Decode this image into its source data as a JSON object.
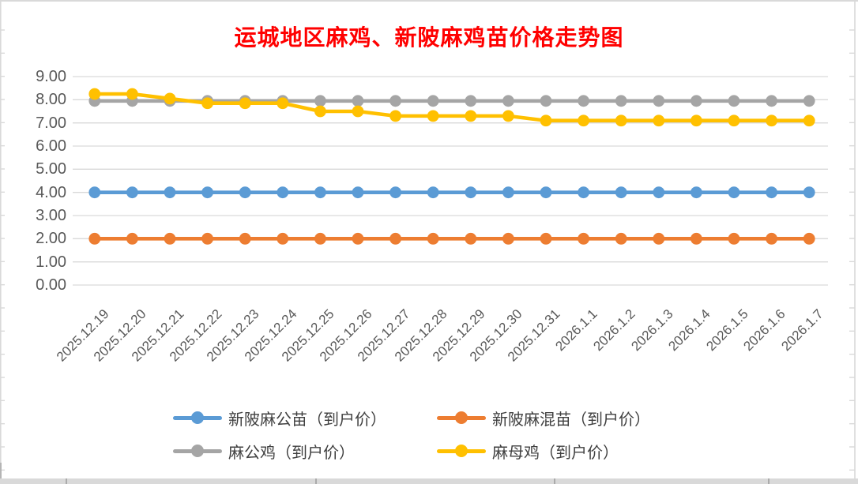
{
  "chart_data": {
    "type": "line",
    "title": "运城地区麻鸡、新陂麻鸡苗价格走势图",
    "title_color": "#FF0000",
    "categories": [
      "2025.12.19",
      "2025.12.20",
      "2025.12.21",
      "2025.12.22",
      "2025.12.23",
      "2025.12.24",
      "2025.12.25",
      "2025.12.26",
      "2025.12.27",
      "2025.12.28",
      "2025.12.29",
      "2025.12.30",
      "2025.12.31",
      "2026.1.1",
      "2026.1.2",
      "2026.1.3",
      "2026.1.4",
      "2026.1.5",
      "2026.1.6",
      "2026.1.7"
    ],
    "series": [
      {
        "name": "新陂麻公苗（到户价）",
        "color": "#5B9BD5",
        "values": [
          4.0,
          4.0,
          4.0,
          4.0,
          4.0,
          4.0,
          4.0,
          4.0,
          4.0,
          4.0,
          4.0,
          4.0,
          4.0,
          4.0,
          4.0,
          4.0,
          4.0,
          4.0,
          4.0,
          4.0
        ]
      },
      {
        "name": "新陂麻混苗（到户价）",
        "color": "#ED7D31",
        "values": [
          2.0,
          2.0,
          2.0,
          2.0,
          2.0,
          2.0,
          2.0,
          2.0,
          2.0,
          2.0,
          2.0,
          2.0,
          2.0,
          2.0,
          2.0,
          2.0,
          2.0,
          2.0,
          2.0,
          2.0
        ]
      },
      {
        "name": "麻公鸡（到户价）",
        "color": "#A5A5A5",
        "values": [
          7.95,
          7.95,
          7.95,
          7.95,
          7.95,
          7.95,
          7.95,
          7.95,
          7.95,
          7.95,
          7.95,
          7.95,
          7.95,
          7.95,
          7.95,
          7.95,
          7.95,
          7.95,
          7.95,
          7.95
        ]
      },
      {
        "name": "麻母鸡（到户价）",
        "color": "#FFC000",
        "values": [
          8.25,
          8.25,
          8.05,
          7.85,
          7.85,
          7.85,
          7.5,
          7.5,
          7.3,
          7.3,
          7.3,
          7.3,
          7.1,
          7.1,
          7.1,
          7.1,
          7.1,
          7.1,
          7.1,
          7.1
        ]
      }
    ],
    "ylim": [
      0,
      9
    ],
    "ytick_step": 1,
    "ytick_labels": [
      "0.00",
      "1.00",
      "2.00",
      "3.00",
      "4.00",
      "5.00",
      "6.00",
      "7.00",
      "8.00",
      "9.00"
    ],
    "grid": true,
    "gridline_color": "#D9D9D9",
    "axis_text_color": "#595959",
    "legend_position": "bottom"
  }
}
